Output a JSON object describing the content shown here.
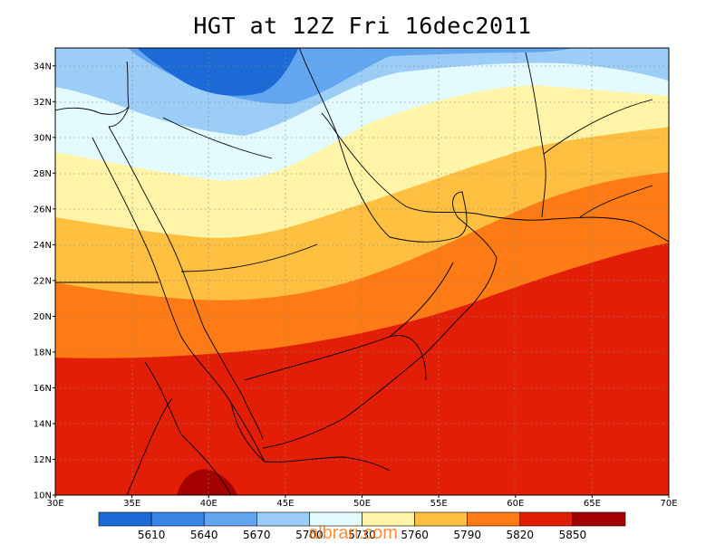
{
  "title": "HGT at 12Z Fri 16dec2011",
  "variable": "HGT",
  "map": {
    "lat_ticks": [
      "10N",
      "12N",
      "14N",
      "16N",
      "18N",
      "20N",
      "22N",
      "24N",
      "26N",
      "28N",
      "30N",
      "32N",
      "34N"
    ],
    "lon_ticks": [
      "30E",
      "35E",
      "40E",
      "45E",
      "50E",
      "55E",
      "60E",
      "65E",
      "70E"
    ],
    "lat_range": [
      10,
      35
    ],
    "lon_range": [
      30,
      70
    ]
  },
  "colorbar": {
    "levels": [
      "5610",
      "5640",
      "5670",
      "5700",
      "5730",
      "5760",
      "5790",
      "5820",
      "5850"
    ],
    "colors": [
      "#1c6ad6",
      "#3a86e6",
      "#62a6f0",
      "#9ccdf7",
      "#e3fbff",
      "#fff4a8",
      "#ffc041",
      "#ff7b16",
      "#e21e06",
      "#a50000"
    ]
  },
  "watermark": "albrari.com"
}
